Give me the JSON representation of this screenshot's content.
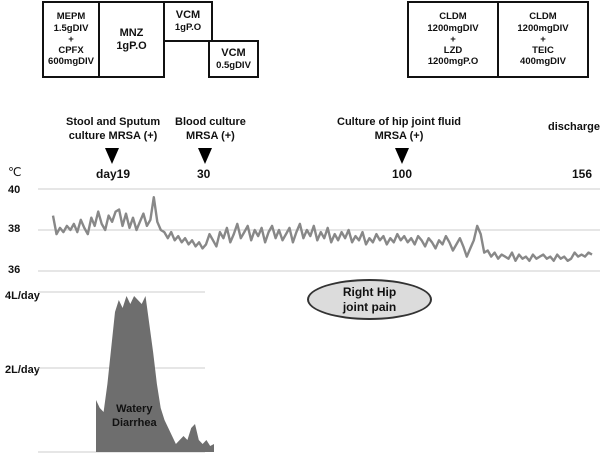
{
  "treatments": {
    "mepm_cpfx": [
      "MEPM",
      "1.5gDIV",
      "+",
      "CPFX",
      "600mgDIV"
    ],
    "mnz": [
      "MNZ",
      "1gP.O"
    ],
    "vcm1": [
      "VCM",
      "1gP.O"
    ],
    "vcm2": [
      "VCM",
      "0.5gDIV"
    ],
    "cldm_lzd": [
      "CLDM",
      "1200mgDIV",
      "+",
      "LZD",
      "1200mgP.O"
    ],
    "cldm_teic": [
      "CLDM",
      "1200mgDIV",
      "+",
      "TEIC",
      "400mgDIV"
    ]
  },
  "events": {
    "stool_sputum": [
      "Stool and Sputum",
      "culture MRSA (+)"
    ],
    "blood": [
      "Blood culture",
      "MRSA (+)"
    ],
    "hip_fluid": [
      "Culture of hip joint fluid",
      "MRSA (+)"
    ],
    "discharge": "discharge"
  },
  "days": {
    "d19": "day19",
    "d30": "30",
    "d100": "100",
    "d156": "156"
  },
  "temp_axis": {
    "unit": "℃",
    "t40": "40",
    "t38": "38",
    "t36": "36"
  },
  "diarrhea_axis": {
    "d4": "4L/day",
    "d2": "2L/day"
  },
  "annotations": {
    "hip_pain": [
      "Right Hip",
      "joint pain"
    ],
    "diarrhea": [
      "Watery",
      "Diarrhea"
    ]
  },
  "colors": {
    "temp_line": "#888888",
    "diarrhea_fill": "#6e6e6e",
    "grid": "#cccccc",
    "ellipse": "#dcdcdc"
  },
  "chart_data": [
    {
      "type": "line",
      "title": "",
      "ylabel": "℃",
      "ylim": [
        36,
        40
      ],
      "xlim": [
        1,
        156
      ],
      "grid": true,
      "series": [
        {
          "x": [
            1,
            2,
            3,
            4,
            5,
            6,
            7,
            8,
            9,
            10,
            11,
            12,
            13,
            14,
            15,
            16,
            17,
            18,
            19,
            20,
            21,
            22,
            23,
            24,
            25,
            26,
            27,
            28,
            29,
            30,
            31,
            32,
            33,
            34,
            35,
            36,
            37,
            38,
            39,
            40,
            41,
            42,
            43,
            44,
            45,
            46,
            47,
            48,
            49,
            50,
            51,
            52,
            53,
            54,
            55,
            56,
            57,
            58,
            59,
            60,
            61,
            62,
            63,
            64,
            65,
            66,
            67,
            68,
            69,
            70,
            71,
            72,
            73,
            74,
            75,
            76,
            77,
            78,
            79,
            80,
            81,
            82,
            83,
            84,
            85,
            86,
            87,
            88,
            89,
            90,
            91,
            92,
            93,
            94,
            95,
            96,
            97,
            98,
            99,
            100,
            101,
            102,
            103,
            104,
            105,
            106,
            107,
            108,
            109,
            110,
            111,
            112,
            113,
            114,
            115,
            116,
            117,
            118,
            119,
            120,
            121,
            122,
            123,
            124,
            125,
            126,
            127,
            128,
            129,
            130,
            131,
            132,
            133,
            134,
            135,
            136,
            137,
            138,
            139,
            140,
            141,
            142,
            143,
            144,
            145,
            146,
            147,
            148,
            149,
            150,
            151,
            152,
            153,
            154,
            155,
            156
          ],
          "values": [
            38.7,
            37.8,
            38.1,
            37.9,
            38.2,
            38.0,
            38.3,
            37.9,
            38.5,
            38.1,
            37.8,
            38.6,
            38.2,
            38.9,
            38.3,
            38.0,
            38.7,
            38.4,
            38.9,
            39.0,
            38.2,
            38.8,
            38.1,
            38.6,
            38.0,
            38.4,
            38.8,
            38.2,
            38.5,
            39.6,
            38.4,
            38.0,
            37.9,
            37.6,
            37.9,
            37.5,
            37.7,
            37.4,
            37.6,
            37.3,
            37.5,
            37.2,
            37.4,
            37.1,
            37.3,
            37.8,
            37.5,
            37.2,
            37.9,
            37.6,
            38.1,
            37.4,
            37.8,
            38.3,
            37.6,
            37.9,
            38.2,
            37.5,
            38.0,
            37.7,
            38.1,
            37.4,
            37.9,
            38.2,
            37.6,
            38.0,
            37.5,
            37.8,
            38.1,
            37.4,
            37.9,
            38.3,
            37.6,
            38.0,
            37.7,
            38.2,
            37.5,
            37.9,
            37.6,
            38.1,
            37.4,
            37.8,
            37.5,
            37.9,
            37.6,
            38.0,
            37.4,
            37.7,
            37.5,
            37.9,
            37.3,
            37.6,
            37.4,
            37.8,
            37.5,
            37.7,
            37.3,
            37.6,
            37.4,
            37.8,
            37.5,
            37.7,
            37.4,
            37.6,
            37.3,
            37.7,
            37.5,
            37.2,
            37.6,
            37.4,
            37.1,
            37.5,
            37.3,
            37.7,
            37.4,
            37.0,
            37.3,
            37.6,
            37.2,
            36.7,
            37.1,
            37.5,
            38.2,
            37.8,
            36.9,
            37.0,
            36.7,
            36.9,
            36.6,
            36.8,
            36.7,
            36.6,
            36.9,
            36.5,
            36.8,
            36.6,
            36.7,
            36.5,
            36.8,
            36.6,
            36.7,
            36.8,
            36.6,
            36.7,
            36.5,
            36.8,
            36.6,
            36.7,
            36.5,
            36.6,
            36.9,
            36.7,
            36.8,
            36.7,
            36.9,
            36.8
          ]
        }
      ]
    },
    {
      "type": "area",
      "title": "",
      "ylabel": "L/day",
      "ylim": [
        0,
        4
      ],
      "grid": true,
      "series": [
        {
          "x": [
            1,
            2,
            3,
            4,
            5,
            6,
            7,
            8,
            9,
            10,
            11,
            12,
            13,
            14,
            15,
            16,
            17,
            18,
            19,
            20,
            21,
            22,
            23,
            24,
            25,
            26,
            27,
            28,
            29,
            30,
            31,
            32
          ],
          "values": [
            1.3,
            1.1,
            1.0,
            1.7,
            2.6,
            3.5,
            3.8,
            3.6,
            3.9,
            3.7,
            3.9,
            3.8,
            3.7,
            3.9,
            3.2,
            2.5,
            1.7,
            1.1,
            0.8,
            0.6,
            0.4,
            0.2,
            0.3,
            0.4,
            0.3,
            0.6,
            0.7,
            0.3,
            0.2,
            0.3,
            0.15,
            0.2
          ]
        }
      ]
    }
  ]
}
